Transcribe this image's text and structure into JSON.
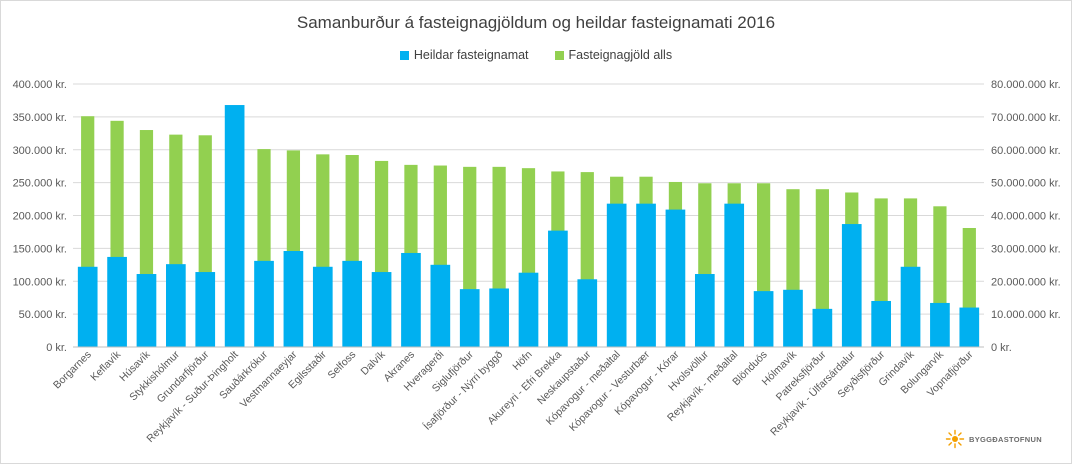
{
  "chart_data": {
    "type": "bar",
    "title": "Samanburður á fasteignagjöldum og heildar fasteignamati 2016",
    "legend_placement": "top-center",
    "grid": true,
    "categories": [
      "Borgarnes",
      "Keflavík",
      "Húsavík",
      "Stykkishólmur",
      "Grundarfjörður",
      "Reykjavík - Suður-Þingholt",
      "Sauðárkrókur",
      "Vestmannaeyjar",
      "Egilsstaðir",
      "Selfoss",
      "Dalvík",
      "Akranes",
      "Hveragerði",
      "Siglufjörður",
      "Ísafjörður - Nýrri byggð",
      "Höfn",
      "Akureyri - Efri Brekka",
      "Neskaupstaður",
      "Kópavogur - meðaltal",
      "Kópavogur - Vesturbær",
      "Kópavogur - Kórar",
      "Hvolsvöllur",
      "Reykjavík - meðaltal",
      "Blönduós",
      "Hólmavík",
      "Patreksfjörður",
      "Reykjavík - Úlfarsárdalur",
      "Seyðisfjörður",
      "Grindavík",
      "Bolungarvík",
      "Vopnafjörður"
    ],
    "series": [
      {
        "name": "Heildar fasteignamat",
        "axis": "right",
        "color": "#00b0f0",
        "values": [
          24400000,
          27400000,
          22200000,
          25200000,
          22800000,
          73600000,
          26200000,
          29200000,
          24400000,
          26200000,
          22800000,
          28600000,
          25000000,
          17600000,
          17800000,
          22600000,
          35400000,
          20600000,
          43600000,
          43600000,
          41800000,
          22200000,
          43600000,
          17000000,
          17400000,
          11600000,
          37400000,
          14000000,
          24400000,
          13400000,
          12000000
        ]
      },
      {
        "name": "Fasteignagjöld alls",
        "axis": "left",
        "color": "#92d050",
        "values": [
          351000,
          344000,
          330000,
          323000,
          322000,
          320000,
          301000,
          299000,
          293000,
          292000,
          283000,
          277000,
          276000,
          274000,
          274000,
          272000,
          267000,
          266000,
          259000,
          259000,
          251000,
          249000,
          249000,
          249000,
          240000,
          240000,
          235000,
          226000,
          226000,
          214000,
          181000
        ]
      }
    ],
    "y_left": {
      "ylim": [
        0,
        400000
      ],
      "ticks": [
        0,
        50000,
        100000,
        150000,
        200000,
        250000,
        300000,
        350000,
        400000
      ],
      "tick_labels": [
        "0 kr.",
        "50.000 kr.",
        "100.000 kr.",
        "150.000 kr.",
        "200.000 kr.",
        "250.000 kr.",
        "300.000 kr.",
        "350.000 kr.",
        "400.000 kr."
      ]
    },
    "y_right": {
      "ylim": [
        0,
        80000000
      ],
      "ticks": [
        0,
        10000000,
        20000000,
        30000000,
        40000000,
        50000000,
        60000000,
        70000000,
        80000000
      ],
      "tick_labels": [
        "0 kr.",
        "10.000.000 kr.",
        "20.000.000 kr.",
        "30.000.000 kr.",
        "40.000.000 kr.",
        "50.000.000 kr.",
        "60.000.000 kr.",
        "70.000.000 kr.",
        "80.000.000 kr."
      ]
    },
    "xlabel": "",
    "ylabel": ""
  },
  "logo": {
    "text": "BYGGÐASTOFNUN",
    "icon": "sun-logo-icon"
  },
  "colors": {
    "blue": "#00b0f0",
    "green": "#92d050",
    "grid": "#d9d9d9",
    "text": "#595959"
  }
}
